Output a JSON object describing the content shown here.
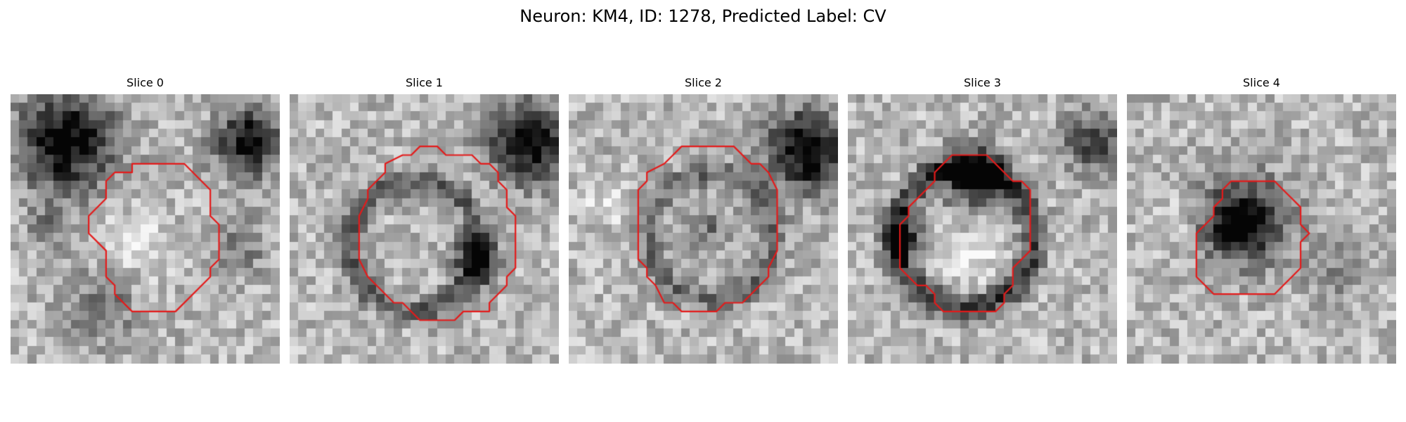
{
  "figure": {
    "title": "Neuron: KM4, ID: 1278, Predicted Label: CV"
  },
  "colors": {
    "background": "#ffffff",
    "contour": "#e41a1a",
    "image_colormap": "grayscale"
  },
  "panels": [
    {
      "title": "Slice 0",
      "content": "grayscale microscopy crop with red contour"
    },
    {
      "title": "Slice 1",
      "content": "grayscale microscopy crop with red contour"
    },
    {
      "title": "Slice 2",
      "content": "grayscale microscopy crop with red contour"
    },
    {
      "title": "Slice 3",
      "content": "grayscale microscopy crop with red contour"
    },
    {
      "title": "Slice 4",
      "content": "grayscale microscopy crop with red contour"
    }
  ]
}
